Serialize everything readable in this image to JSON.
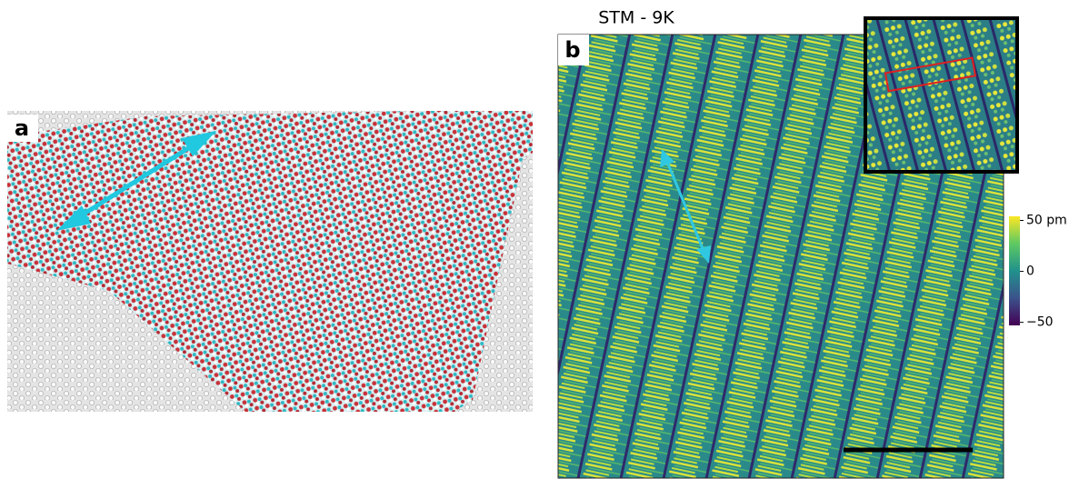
{
  "panels": [
    {
      "label": "a"
    },
    {
      "label": "b",
      "title": "STM - 9K",
      "colorbar": {
        "lim": [
          -53,
          54
        ],
        "ticks": [
          {
            "value": 50,
            "label": "50 pm"
          },
          0,
          {
            "value": -50,
            "label": "−50"
          }
        ]
      }
    }
  ]
}
